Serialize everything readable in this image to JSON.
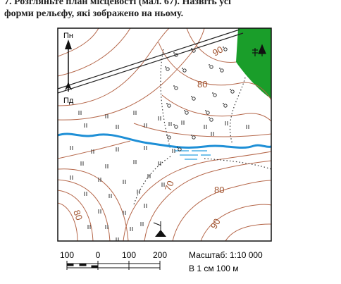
{
  "task": {
    "lines": [
      "7. Розгляньте план місцевості (мал. 67). Назвіть усі",
      "форми рельєфу, які зображено на ньому."
    ]
  },
  "map": {
    "north": "Пн",
    "south": "Пд",
    "contour_labels": [
      "90",
      "80",
      "70",
      "80",
      "90",
      "80"
    ]
  },
  "scale": {
    "labels": [
      "100",
      "0",
      "100",
      "200"
    ],
    "ratio": "Масштаб: 1:10 000",
    "note": "В 1 см 100 м"
  }
}
